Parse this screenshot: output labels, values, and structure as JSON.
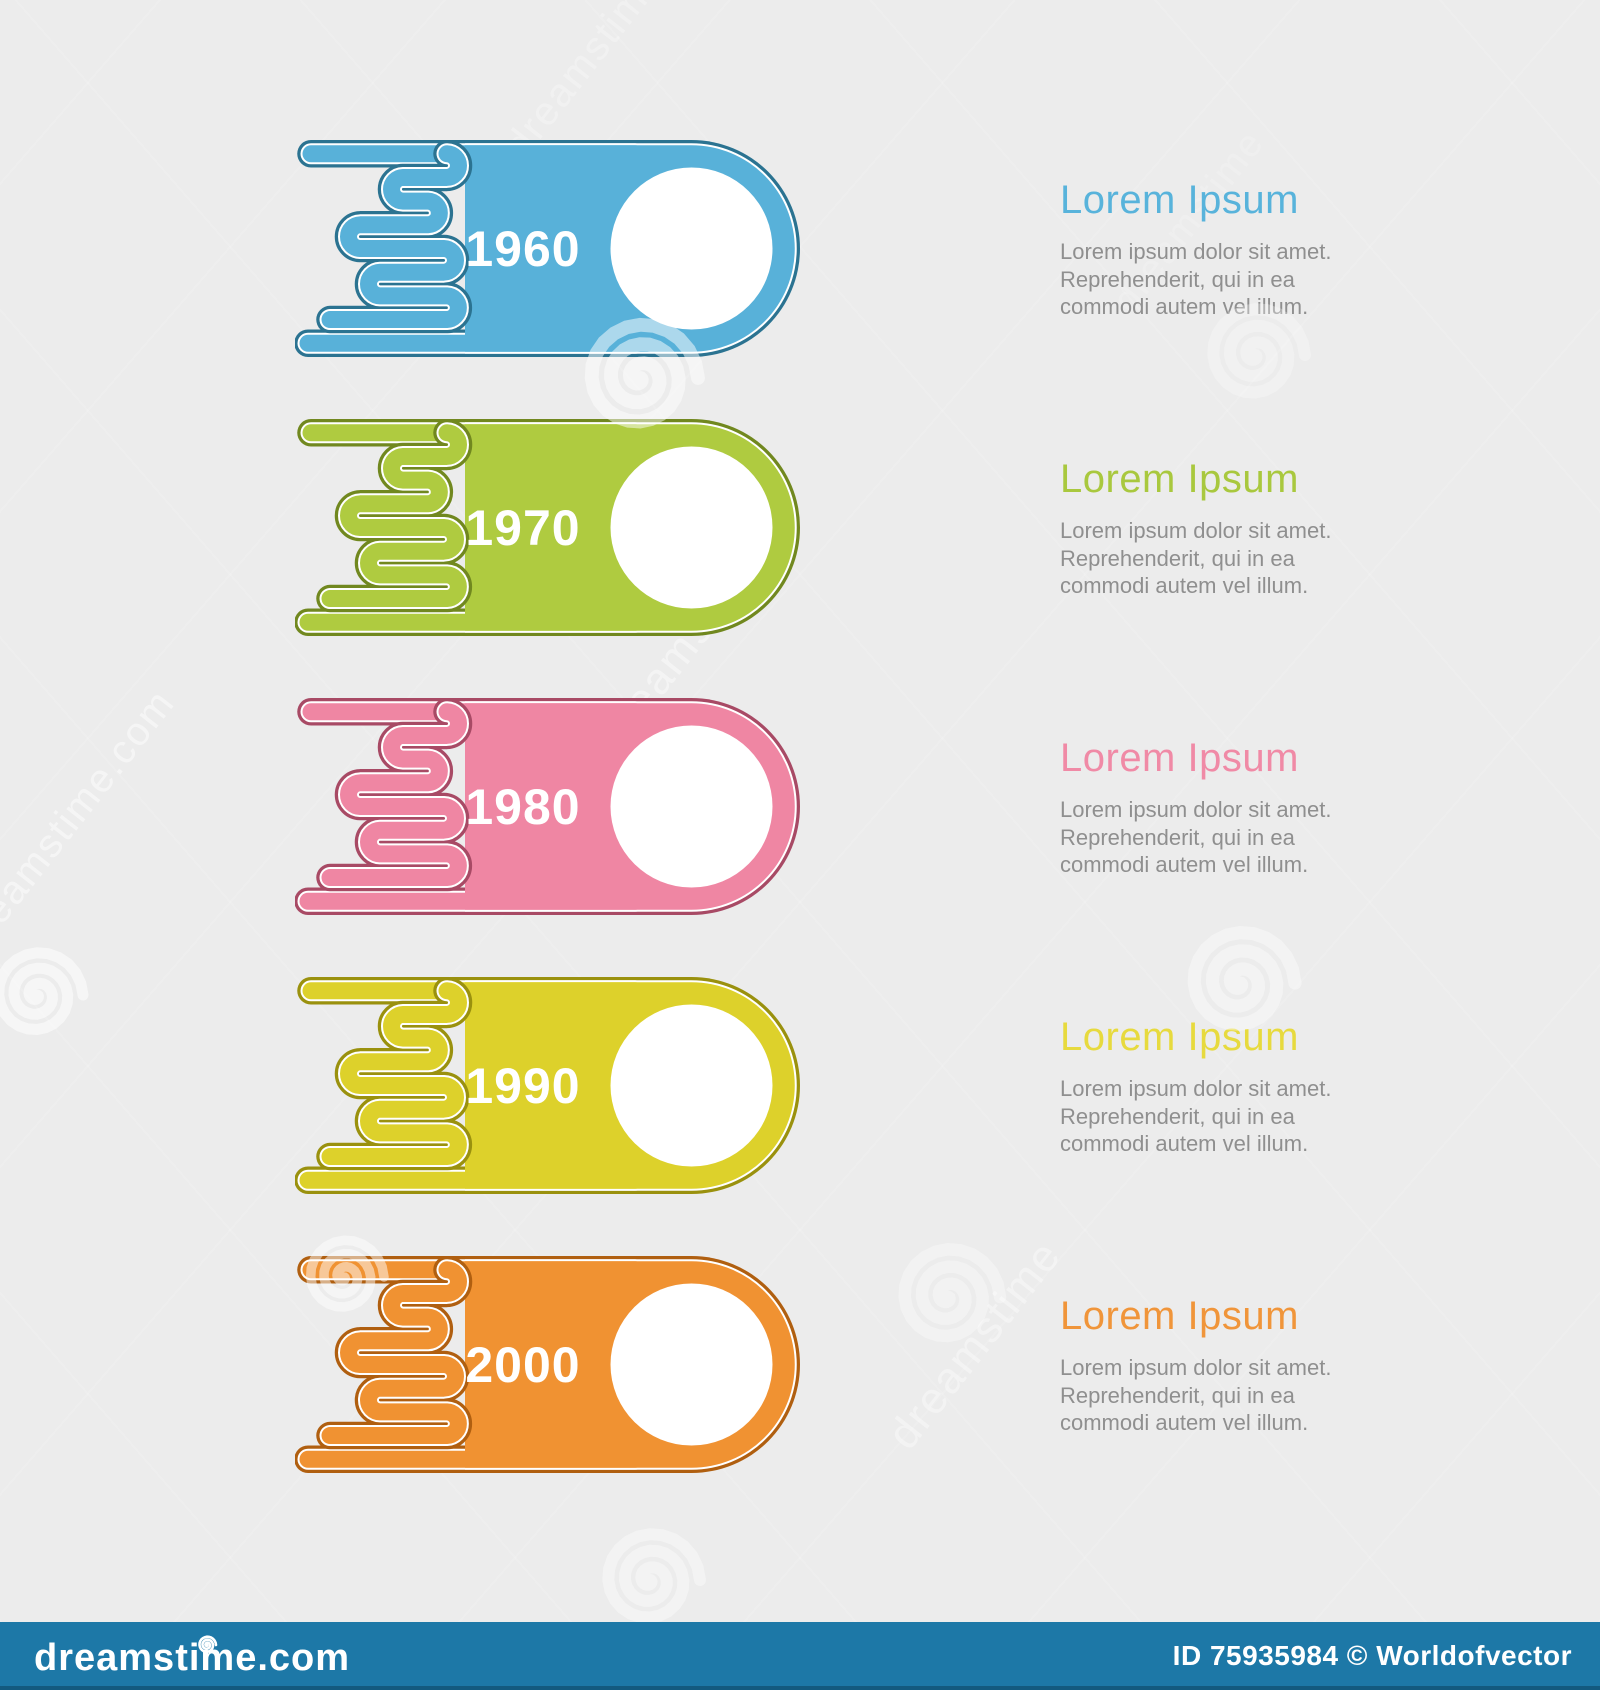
{
  "page": {
    "background": "#ececec",
    "type": "timeline infographic stock image"
  },
  "timeline": {
    "items": [
      {
        "year": "1960",
        "fill": "#58b1d9",
        "dark": "#2b7391",
        "heading": "Lorem Ipsum",
        "heading_color": "#58b3db"
      },
      {
        "year": "1970",
        "fill": "#afcb40",
        "dark": "#71881f",
        "heading": "Lorem Ipsum",
        "heading_color": "#a9c83e"
      },
      {
        "year": "1980",
        "fill": "#ef86a3",
        "dark": "#a84a65",
        "heading": "Lorem Ipsum",
        "heading_color": "#f08aa6"
      },
      {
        "year": "1990",
        "fill": "#ddd12b",
        "dark": "#9a910e",
        "heading": "Lorem Ipsum",
        "heading_color": "#e7da3e"
      },
      {
        "year": "2000",
        "fill": "#f09232",
        "dark": "#b05f10",
        "heading": "Lorem Ipsum",
        "heading_color": "#f0953a"
      }
    ],
    "body_lines": [
      "Lorem ipsum dolor sit amet.",
      "Reprehenderit, qui in ea",
      "commodi autem vel illum."
    ]
  },
  "watermark": {
    "brand": "dreamstime",
    "brand_with_copyright": "© dreamstime",
    "side_text": "dreamstime.com",
    "footer": {
      "logo_text": "dreamstime.com",
      "id_text": "ID 75935984 © Worldofvector",
      "bar_color": "#1d78a7"
    }
  }
}
